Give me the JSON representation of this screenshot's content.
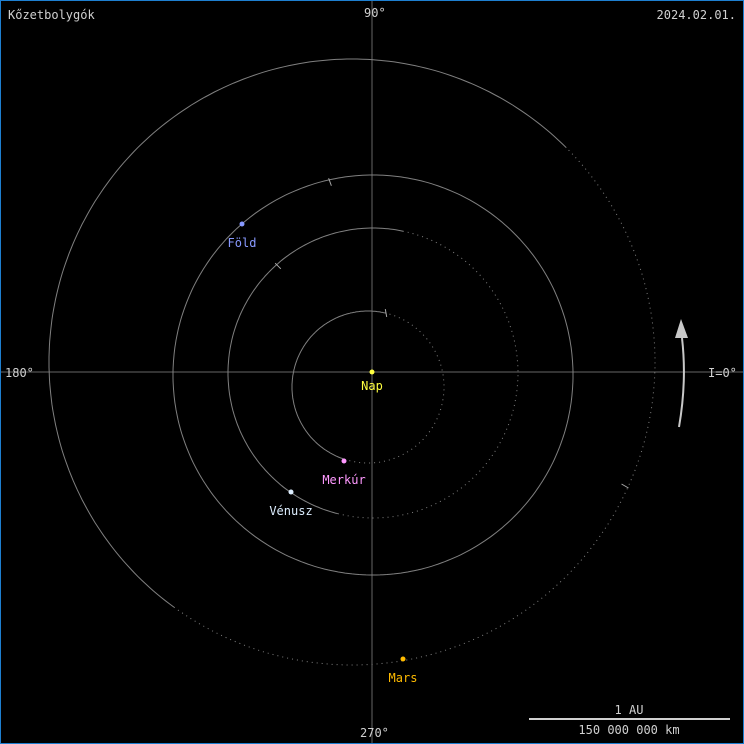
{
  "title": "Kőzetbolygók",
  "date": "2024.02.01.",
  "axes": {
    "top": "90°",
    "left": "180°",
    "right": "I=0°",
    "bottom": "270°"
  },
  "scale": {
    "top": "1 AU",
    "bottom": "150 000 000 km"
  },
  "sun": {
    "name": "Nap",
    "color": "#ffff40"
  },
  "planets": [
    {
      "name": "Merkúr",
      "color": "#ff99ff"
    },
    {
      "name": "Vénusz",
      "color": "#ddeeff"
    },
    {
      "name": "Föld",
      "color": "#8899ff"
    },
    {
      "name": "Mars",
      "color": "#ffbb00"
    }
  ],
  "orbit_color": "#808080",
  "direction_arrow": "counterclockwise-arrow-icon"
}
